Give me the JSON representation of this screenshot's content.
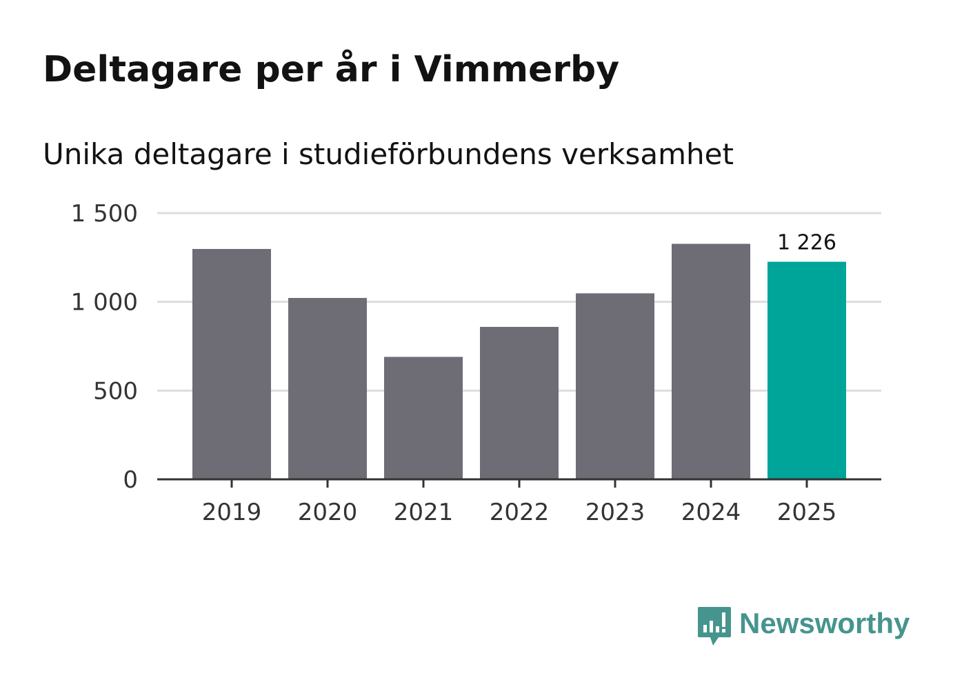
{
  "header": {
    "title": "Deltagare per år i Vimmerby",
    "subtitle": "Unika deltagare i studieförbundens verksamhet"
  },
  "colors": {
    "bar": "#6e6d75",
    "highlight": "#00a59a",
    "grid": "#dddddd",
    "axis": "#333333",
    "brand": "#46948e"
  },
  "chart_data": {
    "type": "bar",
    "title": "Deltagare per år i Vimmerby",
    "subtitle": "Unika deltagare i studieförbundens verksamhet",
    "xlabel": "",
    "ylabel": "",
    "categories": [
      "2019",
      "2020",
      "2021",
      "2022",
      "2023",
      "2024",
      "2025"
    ],
    "values": [
      1298,
      1022,
      690,
      859,
      1048,
      1327,
      1226
    ],
    "highlight_index": 6,
    "ylim": [
      0,
      1500
    ],
    "yticks": [
      0,
      500,
      1000,
      1500
    ],
    "ytick_labels": [
      "0",
      "500",
      "1 000",
      "1 500"
    ],
    "data_labels": [
      {
        "index": 6,
        "text": "1 226"
      }
    ],
    "grid": true
  },
  "branding": {
    "name": "Newsworthy",
    "icon": "newsworthy-logo-icon"
  }
}
